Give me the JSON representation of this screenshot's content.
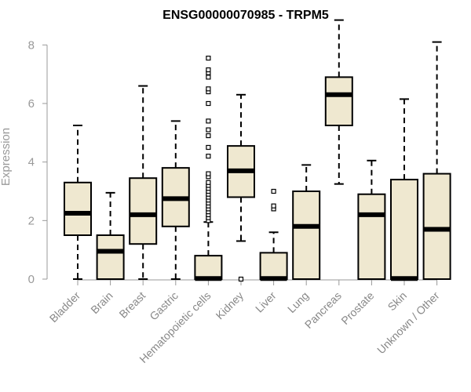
{
  "chart_data": {
    "type": "boxplot",
    "title": "ENSG00000070985 - TRPM5",
    "xlabel": "",
    "ylabel": "Expression",
    "ylim": [
      0,
      9
    ],
    "yticks": [
      0,
      2,
      4,
      6,
      8
    ],
    "categories": [
      "Bladder",
      "Brain",
      "Breast",
      "Gastric",
      "Hematopoietic cells",
      "Kidney",
      "Liver",
      "Lung",
      "Pancreas",
      "Prostate",
      "Skin",
      "Unknown / Other"
    ],
    "boxes": [
      {
        "category": "Bladder",
        "min": 0,
        "q1": 1.5,
        "median": 2.25,
        "q3": 3.3,
        "max": 5.25,
        "outliers": []
      },
      {
        "category": "Brain",
        "min": 0,
        "q1": 0,
        "median": 0.95,
        "q3": 1.5,
        "max": 2.95,
        "outliers": []
      },
      {
        "category": "Breast",
        "min": 0,
        "q1": 1.2,
        "median": 2.2,
        "q3": 3.45,
        "max": 6.6,
        "outliers": []
      },
      {
        "category": "Gastric",
        "min": 0,
        "q1": 1.8,
        "median": 2.75,
        "q3": 3.8,
        "max": 5.4,
        "outliers": []
      },
      {
        "category": "Hematopoietic cells",
        "min": 0,
        "q1": 0,
        "median": 0.02,
        "q3": 0.8,
        "max": 1.95,
        "outliers": [
          2.0,
          2.1,
          2.2,
          2.3,
          2.4,
          2.5,
          2.6,
          2.7,
          2.8,
          2.9,
          3.0,
          3.1,
          3.2,
          3.3,
          3.5,
          3.6,
          4.2,
          4.5,
          4.9,
          5.1,
          5.4,
          6.0,
          6.4,
          6.5,
          6.9,
          7.05,
          7.15,
          7.55
        ]
      },
      {
        "category": "Kidney",
        "min": 1.3,
        "q1": 2.8,
        "median": 3.7,
        "q3": 4.55,
        "max": 6.3,
        "outliers": [
          0
        ]
      },
      {
        "category": "Liver",
        "min": 0,
        "q1": 0,
        "median": 0.02,
        "q3": 0.9,
        "max": 1.6,
        "outliers": [
          2.4,
          2.5,
          3.0
        ]
      },
      {
        "category": "Lung",
        "min": 0,
        "q1": 0,
        "median": 1.8,
        "q3": 3.0,
        "max": 3.9,
        "outliers": []
      },
      {
        "category": "Pancreas",
        "min": 3.25,
        "q1": 5.25,
        "median": 6.3,
        "q3": 6.9,
        "max": 8.85,
        "outliers": []
      },
      {
        "category": "Prostate",
        "min": 0,
        "q1": 0,
        "median": 2.2,
        "q3": 2.9,
        "max": 4.05,
        "outliers": []
      },
      {
        "category": "Skin",
        "min": 0,
        "q1": 0,
        "median": 0.02,
        "q3": 3.4,
        "max": 6.15,
        "outliers": []
      },
      {
        "category": "Unknown / Other",
        "min": 0,
        "q1": 0,
        "median": 1.7,
        "q3": 3.6,
        "max": 8.1,
        "outliers": []
      }
    ],
    "colors": {
      "box_fill": "#efe8d0",
      "box_stroke": "#000000",
      "median": "#000000",
      "axis": "#999999",
      "axis_text": "#999999"
    }
  }
}
